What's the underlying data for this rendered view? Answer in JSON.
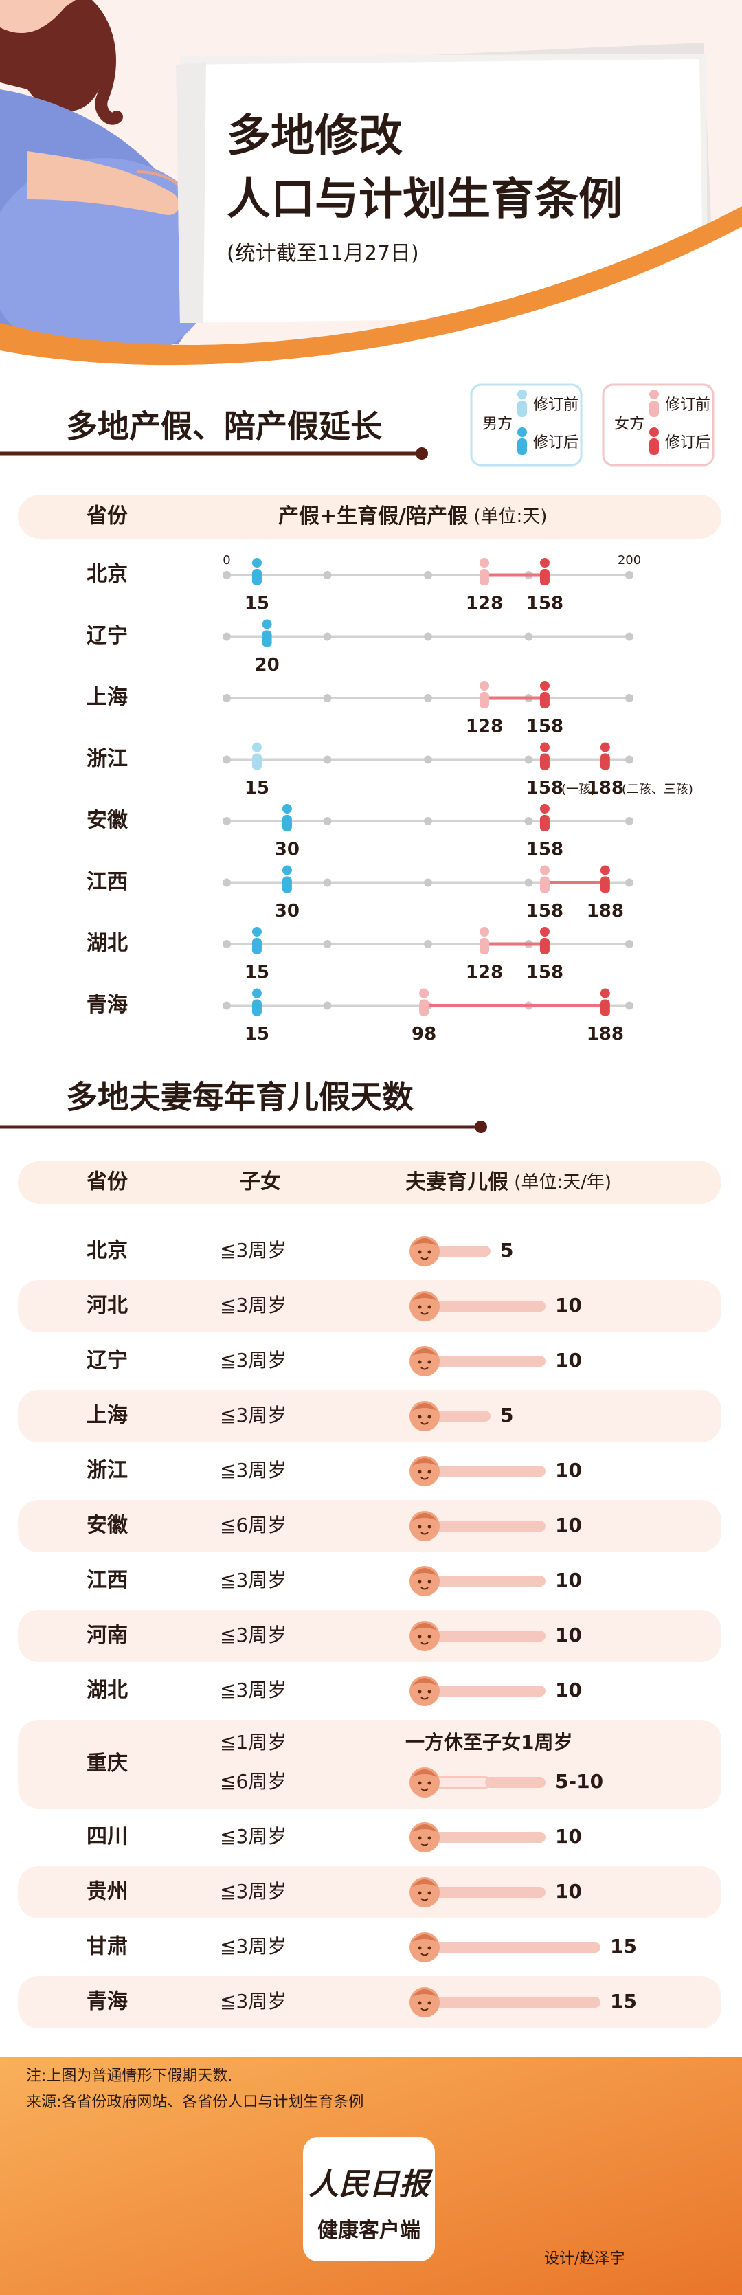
{
  "header": {
    "title_lines": [
      "多地修改",
      "人口与计划生育条例"
    ],
    "subtitle": "(统计截至11月27日)"
  },
  "leave": {
    "title": "多地产假、陪产假延长",
    "legend": {
      "male": {
        "label": "男方",
        "before": "修订前",
        "after": "修订后"
      },
      "female": {
        "label": "女方",
        "before": "修订前",
        "after": "修订后"
      }
    },
    "colors": {
      "male_before": "#a9dcef",
      "male_after": "#3db4df",
      "female_before": "#f3b5b5",
      "female_after": "#e0474c"
    },
    "table_header": {
      "province": "省份",
      "column": "产假+生育假/陪产假",
      "unit": " (单位:天)"
    },
    "xlim": [
      0,
      200
    ],
    "xticks": [
      0,
      200
    ],
    "rows": [
      {
        "province": "北京",
        "male": [
          {
            "value": 15,
            "stage": "after"
          }
        ],
        "female": [
          {
            "value": 128,
            "stage": "before"
          },
          {
            "value": 158,
            "stage": "after"
          }
        ]
      },
      {
        "province": "辽宁",
        "male": [
          {
            "value": 20,
            "stage": "after"
          }
        ],
        "female": []
      },
      {
        "province": "上海",
        "male": [],
        "female": [
          {
            "value": 128,
            "stage": "before"
          },
          {
            "value": 158,
            "stage": "after"
          }
        ]
      },
      {
        "province": "浙江",
        "male": [
          {
            "value": 15,
            "stage": "before"
          }
        ],
        "female": [
          {
            "value": 158,
            "stage": "after",
            "note": "(一孩)"
          },
          {
            "value": 188,
            "stage": "after",
            "note": "(二孩、三孩)"
          }
        ]
      },
      {
        "province": "安徽",
        "male": [
          {
            "value": 30,
            "stage": "after"
          }
        ],
        "female": [
          {
            "value": 158,
            "stage": "after"
          }
        ]
      },
      {
        "province": "江西",
        "male": [
          {
            "value": 30,
            "stage": "after"
          }
        ],
        "female": [
          {
            "value": 158,
            "stage": "before"
          },
          {
            "value": 188,
            "stage": "after"
          }
        ]
      },
      {
        "province": "湖北",
        "male": [
          {
            "value": 15,
            "stage": "after"
          }
        ],
        "female": [
          {
            "value": 128,
            "stage": "before"
          },
          {
            "value": 158,
            "stage": "after"
          }
        ]
      },
      {
        "province": "青海",
        "male": [
          {
            "value": 15,
            "stage": "after"
          }
        ],
        "female": [
          {
            "value": 98,
            "stage": "before"
          },
          {
            "value": 188,
            "stage": "after"
          }
        ]
      }
    ]
  },
  "parental": {
    "title": "多地夫妻每年育儿假天数",
    "table_header": {
      "province": "省份",
      "children": "子女",
      "column": "夫妻育儿假",
      "unit": " (单位:天/年)"
    },
    "rows": [
      {
        "province": "北京",
        "entries": [
          {
            "children": "≦3周岁",
            "days": 5
          }
        ]
      },
      {
        "province": "河北",
        "entries": [
          {
            "children": "≦3周岁",
            "days": 10
          }
        ]
      },
      {
        "province": "辽宁",
        "entries": [
          {
            "children": "≦3周岁",
            "days": 10
          }
        ]
      },
      {
        "province": "上海",
        "entries": [
          {
            "children": "≦3周岁",
            "days": 5
          }
        ]
      },
      {
        "province": "浙江",
        "entries": [
          {
            "children": "≦3周岁",
            "days": 10
          }
        ]
      },
      {
        "province": "安徽",
        "entries": [
          {
            "children": "≦6周岁",
            "days": 10
          }
        ]
      },
      {
        "province": "江西",
        "entries": [
          {
            "children": "≦3周岁",
            "days": 10
          }
        ]
      },
      {
        "province": "河南",
        "entries": [
          {
            "children": "≦3周岁",
            "days": 10
          }
        ]
      },
      {
        "province": "湖北",
        "entries": [
          {
            "children": "≦3周岁",
            "days": 10
          }
        ]
      },
      {
        "province": "重庆",
        "entries": [
          {
            "children": "≦1周岁",
            "text": "一方休至子女1周岁"
          },
          {
            "children": "≦6周岁",
            "days": [
              5,
              10
            ],
            "label": "5-10"
          }
        ]
      },
      {
        "province": "四川",
        "entries": [
          {
            "children": "≦3周岁",
            "days": 10
          }
        ]
      },
      {
        "province": "贵州",
        "entries": [
          {
            "children": "≦3周岁",
            "days": 10
          }
        ]
      },
      {
        "province": "甘肃",
        "entries": [
          {
            "children": "≦3周岁",
            "days": 15
          }
        ]
      },
      {
        "province": "青海",
        "entries": [
          {
            "children": "≦3周岁",
            "days": 15
          }
        ]
      }
    ]
  },
  "footer": {
    "notes": [
      "注:上图为普通情形下假期天数.",
      "来源:各省份政府网站、各省份人口与计划生育条例"
    ],
    "logo": {
      "name": "人民日报",
      "sub": "健康客户端"
    },
    "designer": "设计/赵泽宇"
  }
}
